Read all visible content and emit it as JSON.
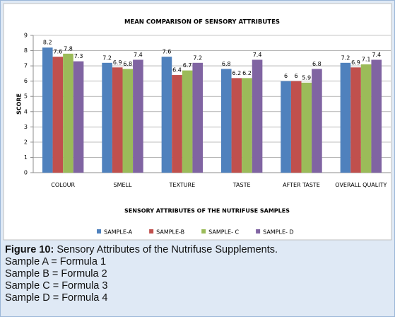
{
  "chart_data": {
    "type": "bar",
    "title": "MEAN COMPARISON OF SENSORY ATTRIBUTES",
    "x_label": "SENSORY ATTRIBUTES OF THE NUTRIFUSE SAMPLES",
    "y_label": "SCORE",
    "categories": [
      "COLOUR",
      "SMELL",
      "TEXTURE",
      "TASTE",
      "AFTER TASTE",
      "OVERALL QUALITY"
    ],
    "series": [
      {
        "name": "SAMPLE-A",
        "color": "#4f81bd",
        "values": [
          8.2,
          7.2,
          7.6,
          6.8,
          6,
          7.2
        ]
      },
      {
        "name": "SAMPLE-B",
        "color": "#c0504d",
        "values": [
          7.6,
          6.9,
          6.4,
          6.2,
          6,
          6.9
        ]
      },
      {
        "name": "SAMPLE- C",
        "color": "#9bbb59",
        "values": [
          7.8,
          6.8,
          6.7,
          6.2,
          5.9,
          7.1
        ]
      },
      {
        "name": "SAMPLE- D",
        "color": "#8064a2",
        "values": [
          7.3,
          7.4,
          7.2,
          7.4,
          6.8,
          7.4
        ]
      }
    ],
    "ylim": [
      0,
      9
    ],
    "yticks": [
      0,
      1,
      2,
      3,
      4,
      5,
      6,
      7,
      8,
      9
    ],
    "grid": true,
    "legend": "bottom"
  },
  "caption": {
    "label": "Figure 10:",
    "text": "Sensory Attributes of the Nutrifuse Supplements.",
    "lines": [
      "Sample A = Formula 1",
      "Sample B = Formula 2",
      "Sample C = Formula 3",
      "Sample D = Formula 4"
    ]
  }
}
